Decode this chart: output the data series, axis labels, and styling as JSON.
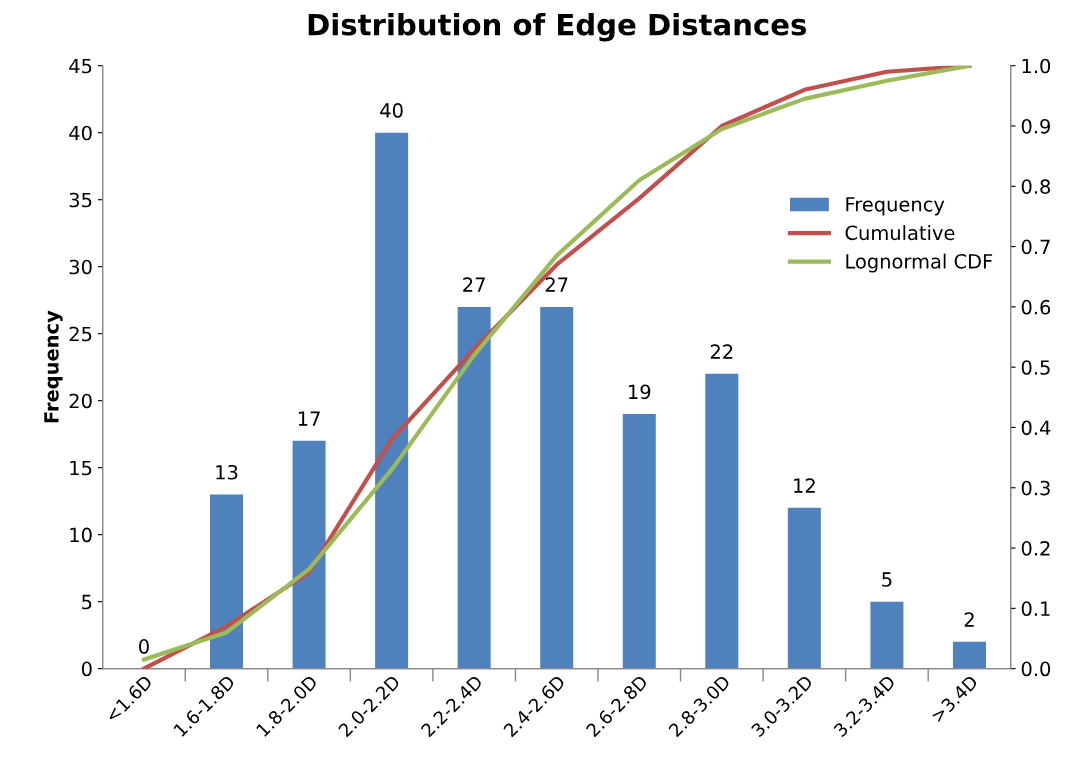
{
  "chart_data": {
    "type": "bar",
    "title": "Distribution of Edge Distances",
    "ylabel": "Frequency",
    "categories": [
      "<1.6D",
      "1.6-1.8D",
      "1.8-2.0D",
      "2.0-2.2D",
      "2.2-2.4D",
      "2.4-2.6D",
      "2.6-2.8D",
      "2.8-3.0D",
      "3.0-3.2D",
      "3.2-3.4D",
      ">3.4D"
    ],
    "series": [
      {
        "name": "Frequency",
        "color": "#4f81bd",
        "values": [
          0,
          13,
          17,
          40,
          27,
          27,
          19,
          22,
          12,
          5,
          2
        ],
        "value_labels": [
          "0",
          "13",
          "17",
          "40",
          "27",
          "27",
          "19",
          "22",
          "12",
          "5",
          "2"
        ]
      },
      {
        "name": "Cumulative",
        "type": "line",
        "axis": "y2",
        "color": "#c0504d",
        "values": [
          0,
          0.07,
          0.16,
          0.38,
          0.53,
          0.67,
          0.78,
          0.9,
          0.96,
          0.99,
          1.0
        ]
      },
      {
        "name": "Lognormal CDF",
        "type": "line",
        "axis": "y2",
        "color": "#9bbb59",
        "values": [
          0.015,
          0.06,
          0.165,
          0.33,
          0.52,
          0.685,
          0.81,
          0.895,
          0.945,
          0.975,
          1.0
        ]
      }
    ],
    "ylim": [
      0,
      45
    ],
    "yticks": [
      0,
      5,
      10,
      15,
      20,
      25,
      30,
      35,
      40,
      45
    ],
    "y2lim": [
      0,
      1
    ],
    "y2ticks": [
      {
        "value": 0,
        "label": "0.0"
      },
      {
        "value": 0.1,
        "label": "0.1"
      },
      {
        "value": 0.2,
        "label": "0.2"
      },
      {
        "value": 0.3,
        "label": "0.3"
      },
      {
        "value": 0.4,
        "label": "0.4"
      },
      {
        "value": 0.5,
        "label": "0.5"
      },
      {
        "value": 0.6,
        "label": "0.6"
      },
      {
        "value": 0.7,
        "label": "0.7"
      },
      {
        "value": 0.8,
        "label": "0.8"
      },
      {
        "value": 0.9,
        "label": "0.9"
      },
      {
        "value": 1.0,
        "label": "1.0"
      }
    ],
    "legend": "right",
    "grid": false
  }
}
